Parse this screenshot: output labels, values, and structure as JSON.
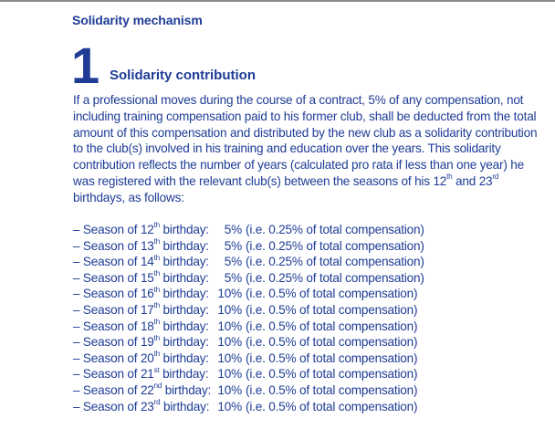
{
  "header": "Solidarity mechanism",
  "article": {
    "number": "1",
    "title": "Solidarity contribution"
  },
  "intro": {
    "text": "If a professional moves during the course of a contract, 5% of any compensation, not including training compensation paid to his former club, shall be deducted from the total amount of this compensation and distributed by the new club as a solidarity contribution to the club(s) involved in his training and education over the years. This solidarity contribution reflects the number of years (calculated pro rata if less than one year) he was registered with the relevant club(s) between the seasons of his ",
    "age_start": "12",
    "age_start_suffix": "th",
    "middle": " and ",
    "age_end": "23",
    "age_end_suffix": "rd",
    "ending": " birthdays, as follows:"
  },
  "seasons": [
    {
      "prefix": "– Season of ",
      "age": "12",
      "suffix": "th",
      "birthday": " birthday:",
      "pct": "5%",
      "detail": "(i.e. 0.25% of total compensation)"
    },
    {
      "prefix": "– Season of ",
      "age": "13",
      "suffix": "th",
      "birthday": " birthday:",
      "pct": "5%",
      "detail": "(i.e. 0.25% of total compensation)"
    },
    {
      "prefix": "– Season of ",
      "age": "14",
      "suffix": "th",
      "birthday": " birthday:",
      "pct": "5%",
      "detail": "(i.e. 0.25% of total compensation)"
    },
    {
      "prefix": "– Season of ",
      "age": "15",
      "suffix": "th",
      "birthday": " birthday:",
      "pct": "5%",
      "detail": "(i.e. 0.25% of total compensation)"
    },
    {
      "prefix": "– Season of ",
      "age": "16",
      "suffix": "th",
      "birthday": " birthday:",
      "pct": "10%",
      "detail": "(i.e. 0.5% of total compensation)"
    },
    {
      "prefix": "– Season of ",
      "age": "17",
      "suffix": "th",
      "birthday": " birthday:",
      "pct": "10%",
      "detail": "(i.e. 0.5% of total compensation)"
    },
    {
      "prefix": "– Season of ",
      "age": "18",
      "suffix": "th",
      "birthday": " birthday:",
      "pct": "10%",
      "detail": "(i.e. 0.5% of total compensation)"
    },
    {
      "prefix": "– Season of ",
      "age": "19",
      "suffix": "th",
      "birthday": " birthday:",
      "pct": "10%",
      "detail": "(i.e. 0.5% of total compensation)"
    },
    {
      "prefix": "– Season of ",
      "age": "20",
      "suffix": "th",
      "birthday": " birthday:",
      "pct": "10%",
      "detail": "(i.e. 0.5% of total compensation)"
    },
    {
      "prefix": "– Season of ",
      "age": "21",
      "suffix": "st",
      "birthday": " birthday:",
      "pct": "10%",
      "detail": "(i.e. 0.5% of total compensation)"
    },
    {
      "prefix": "– Season of ",
      "age": "22",
      "suffix": "nd",
      "birthday": " birthday:",
      "pct": "10%",
      "detail": "(i.e. 0.5% of total compensation)"
    },
    {
      "prefix": "– Season of ",
      "age": "23",
      "suffix": "rd",
      "birthday": " birthday:",
      "pct": "10%",
      "detail": "(i.e. 0.5% of total compensation)"
    }
  ]
}
